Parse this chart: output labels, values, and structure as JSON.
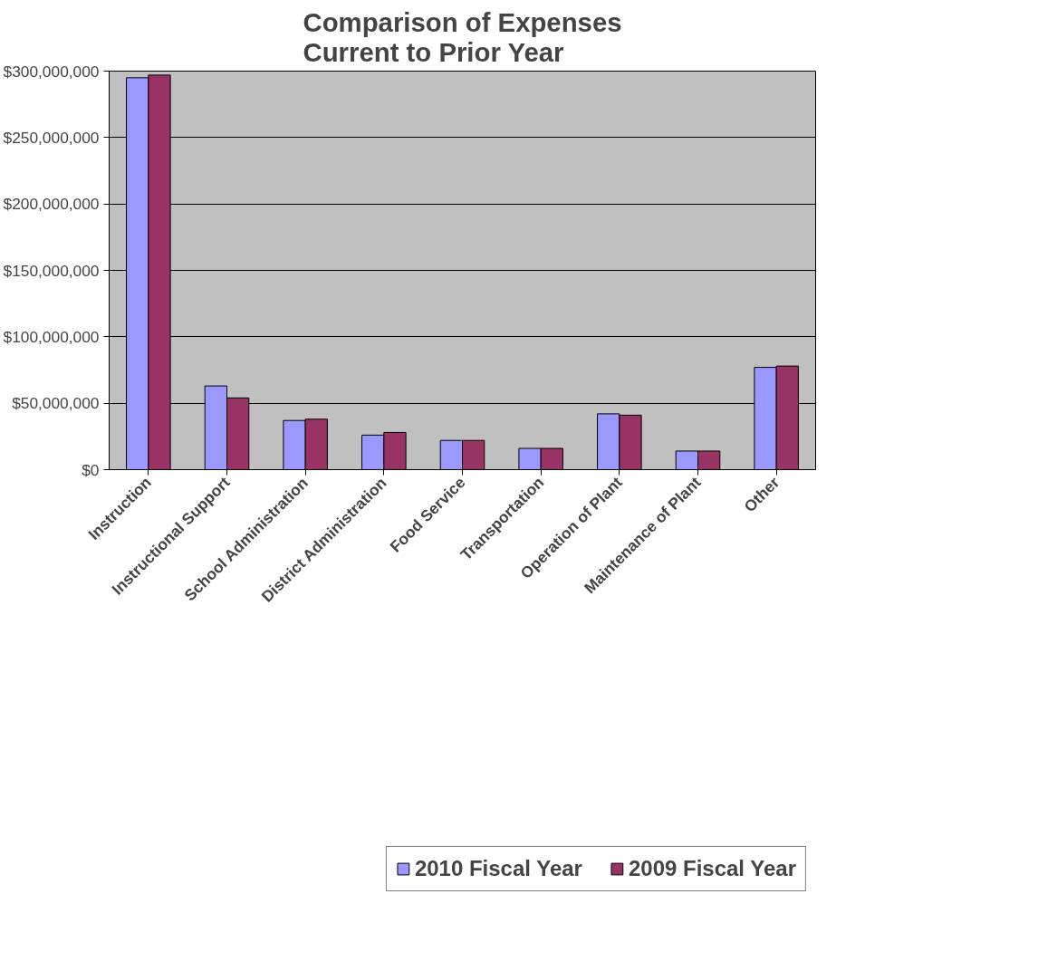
{
  "chart_data": {
    "type": "bar",
    "title": "Comparison of Expenses\nCurrent to Prior Year",
    "categories": [
      "Instruction",
      "Instructional Support",
      "School Administration",
      "District Administration",
      "Food Service",
      "Transportation",
      "Operation of Plant",
      "Maintenance of Plant",
      "Other"
    ],
    "series": [
      {
        "name": "2010 Fiscal Year",
        "color": "#9999ff",
        "values": [
          295000000,
          63000000,
          37000000,
          26000000,
          22000000,
          16000000,
          42000000,
          14000000,
          77000000
        ]
      },
      {
        "name": "2009 Fiscal Year",
        "color": "#993366",
        "values": [
          297000000,
          54000000,
          38000000,
          28000000,
          22000000,
          16000000,
          41000000,
          14000000,
          78000000
        ]
      }
    ],
    "ylim": [
      0,
      300000000
    ],
    "yticks": [
      {
        "value": 0,
        "label": "$0"
      },
      {
        "value": 50000000,
        "label": "$50,000,000"
      },
      {
        "value": 100000000,
        "label": "$100,000,000"
      },
      {
        "value": 150000000,
        "label": "$150,000,000"
      },
      {
        "value": 200000000,
        "label": "$200,000,000"
      },
      {
        "value": 250000000,
        "label": "$250,000,000"
      },
      {
        "value": 300000000,
        "label": "$300,000,000"
      }
    ],
    "grid": "y",
    "legend": "bottom"
  }
}
